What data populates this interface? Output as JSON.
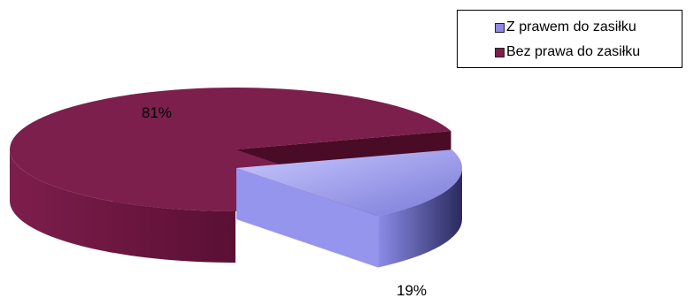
{
  "chart_data": {
    "type": "pie",
    "style": "3d-exploded",
    "categories": [
      "Z prawem do zasiłku",
      "Bez prawa do zasiłku"
    ],
    "values": [
      19,
      81
    ],
    "data_labels": [
      "19%",
      "81%"
    ],
    "colors": [
      "#8a8ae6",
      "#7c1f4c"
    ],
    "legend_position": "top-right",
    "title": "",
    "xlabel": "",
    "ylabel": ""
  }
}
